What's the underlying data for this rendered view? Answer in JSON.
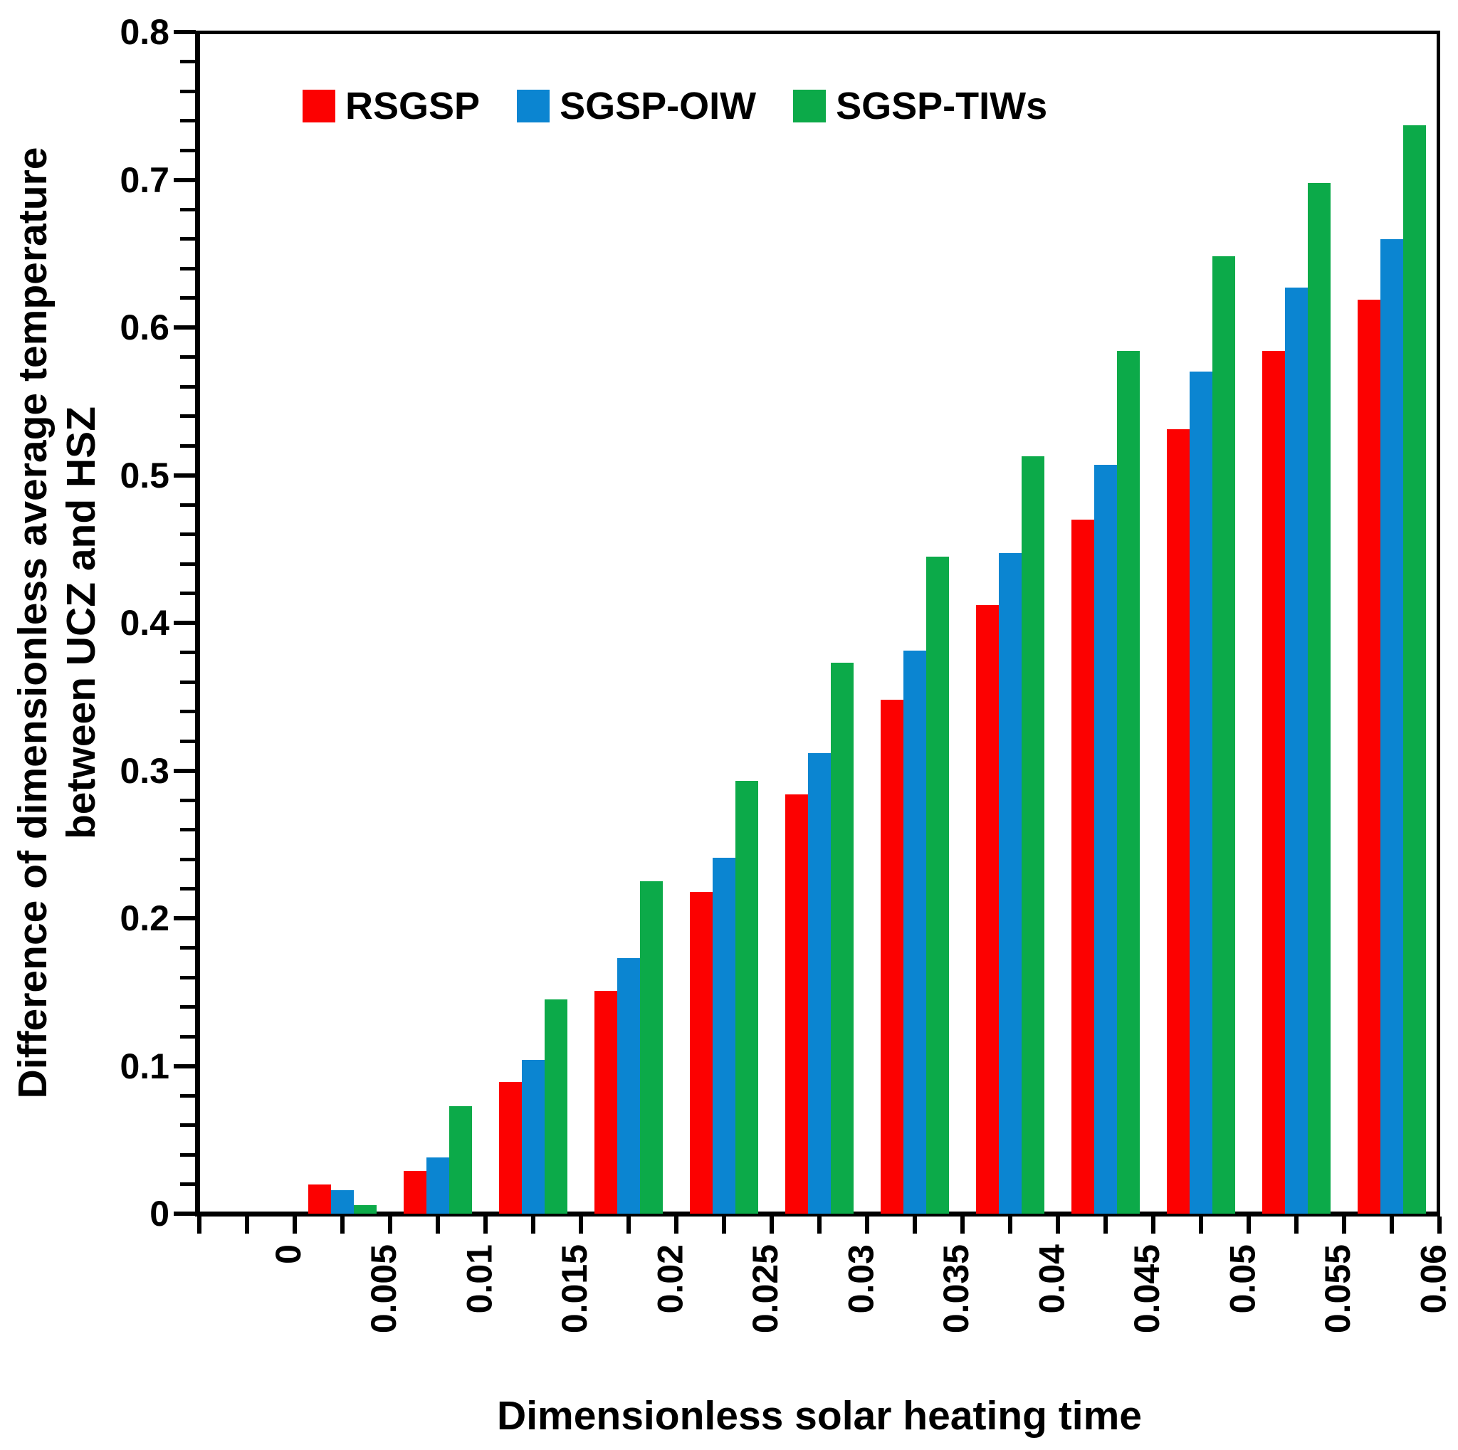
{
  "chart_data": {
    "type": "bar",
    "title": "",
    "xlabel": "Dimensionless solar heating time",
    "ylabel": "Difference of dimensionless average temperature between UCZ and HSZ",
    "ylabel_line1": "Difference of dimensionless average temperature",
    "ylabel_line2": "between UCZ and HSZ",
    "categories": [
      "0",
      "0.005",
      "0.01",
      "0.015",
      "0.02",
      "0.025",
      "0.03",
      "0.035",
      "0.04",
      "0.045",
      "0.05",
      "0.055",
      "0.06"
    ],
    "y_ticks": [
      "0",
      "0.1",
      "0.2",
      "0.3",
      "0.4",
      "0.5",
      "0.6",
      "0.7",
      "0.8"
    ],
    "ylim": [
      0,
      0.8
    ],
    "y_major_step": 0.1,
    "y_minor_step": 0.02,
    "grid": false,
    "legend_position": "top-inside",
    "series": [
      {
        "name": "RSGSP",
        "color": "#fc0101",
        "values": [
          0,
          0.02,
          0.029,
          0.089,
          0.151,
          0.218,
          0.284,
          0.348,
          0.412,
          0.47,
          0.531,
          0.584,
          0.619
        ]
      },
      {
        "name": "SGSP-OIW",
        "color": "#0b85d1",
        "values": [
          0,
          0.016,
          0.038,
          0.104,
          0.173,
          0.241,
          0.312,
          0.381,
          0.447,
          0.507,
          0.57,
          0.627,
          0.66
        ]
      },
      {
        "name": "SGSP-TIWs",
        "color": "#0caa49",
        "values": [
          0,
          0.006,
          0.073,
          0.145,
          0.225,
          0.293,
          0.373,
          0.445,
          0.513,
          0.584,
          0.648,
          0.698,
          0.737
        ]
      }
    ]
  }
}
